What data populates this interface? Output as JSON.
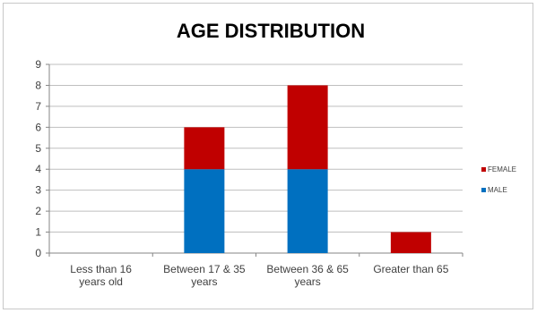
{
  "chart_data": {
    "type": "bar",
    "stacked": true,
    "title": "AGE DISTRIBUTION",
    "categories": [
      [
        "Less than 16",
        "years old"
      ],
      [
        "Between 17 & 35",
        "years"
      ],
      [
        "Between 36 & 65",
        "years"
      ],
      [
        "Greater than 65"
      ]
    ],
    "series": [
      {
        "name": "MALE",
        "values": [
          0,
          4,
          4,
          0
        ],
        "color": "#0070c0"
      },
      {
        "name": "FEMALE",
        "values": [
          0,
          2,
          4,
          1
        ],
        "color": "#c00000"
      }
    ],
    "ylim": [
      0,
      9
    ],
    "yticks": [
      0,
      1,
      2,
      3,
      4,
      5,
      6,
      7,
      8,
      9
    ],
    "grid": true,
    "legend_position": "right",
    "legend_order": [
      "FEMALE",
      "MALE"
    ]
  }
}
